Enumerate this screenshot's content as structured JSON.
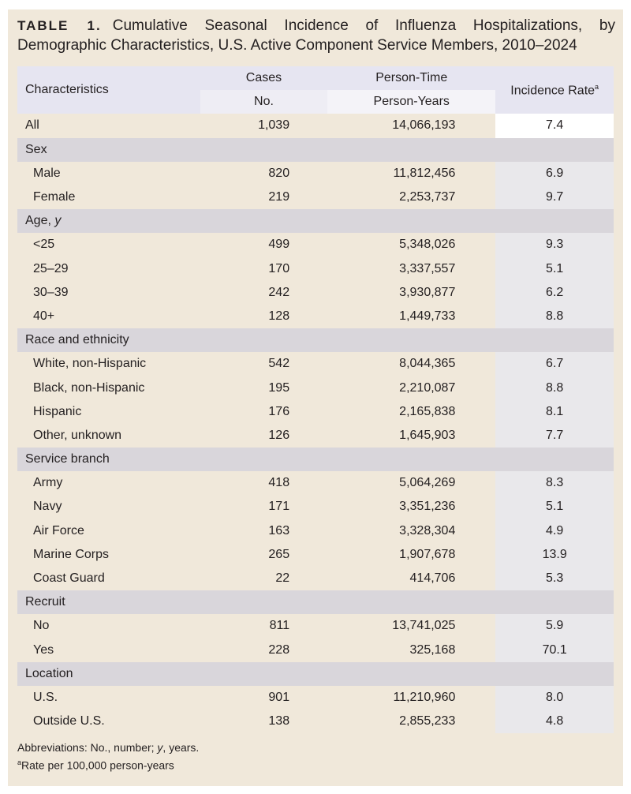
{
  "title": {
    "label": "TABLE 1.",
    "text": "Cumulative Seasonal Incidence of Influenza Hospitalizations, by Demographic Characteristics, U.S. Active Component Service Members, 2010–2024"
  },
  "header": {
    "characteristics": "Characteristics",
    "cases": "Cases",
    "cases_sub": "No.",
    "person_time": "Person-Time",
    "person_time_sub": "Person-Years",
    "rate": "Incidence Rate",
    "rate_sup": "a"
  },
  "rows": [
    {
      "type": "all",
      "label": "All",
      "cases": "1,039",
      "py": "14,066,193",
      "rate": "7.4"
    },
    {
      "type": "sec",
      "label": "Sex"
    },
    {
      "type": "item",
      "label": "Male",
      "cases": "820",
      "py": "11,812,456",
      "rate": "6.9"
    },
    {
      "type": "item",
      "label": "Female",
      "cases": "219",
      "py": "2,253,737",
      "rate": "9.7"
    },
    {
      "type": "sec",
      "label": "Age, ",
      "label_italic": "y"
    },
    {
      "type": "item",
      "label": "<25",
      "cases": "499",
      "py": "5,348,026",
      "rate": "9.3"
    },
    {
      "type": "item",
      "label": "25–29",
      "cases": "170",
      "py": "3,337,557",
      "rate": "5.1"
    },
    {
      "type": "item",
      "label": "30–39",
      "cases": "242",
      "py": "3,930,877",
      "rate": "6.2"
    },
    {
      "type": "item",
      "label": "40+",
      "cases": "128",
      "py": "1,449,733",
      "rate": "8.8"
    },
    {
      "type": "sec",
      "label": "Race and ethnicity"
    },
    {
      "type": "item",
      "label": "White, non-Hispanic",
      "cases": "542",
      "py": "8,044,365",
      "rate": "6.7"
    },
    {
      "type": "item",
      "label": "Black, non-Hispanic",
      "cases": "195",
      "py": "2,210,087",
      "rate": "8.8"
    },
    {
      "type": "item",
      "label": "Hispanic",
      "cases": "176",
      "py": "2,165,838",
      "rate": "8.1"
    },
    {
      "type": "item",
      "label": "Other, unknown",
      "cases": "126",
      "py": "1,645,903",
      "rate": "7.7"
    },
    {
      "type": "sec",
      "label": "Service branch"
    },
    {
      "type": "item",
      "label": "Army",
      "cases": "418",
      "py": "5,064,269",
      "rate": "8.3"
    },
    {
      "type": "item",
      "label": "Navy",
      "cases": "171",
      "py": "3,351,236",
      "rate": "5.1"
    },
    {
      "type": "item",
      "label": "Air Force",
      "cases": "163",
      "py": "3,328,304",
      "rate": "4.9"
    },
    {
      "type": "item",
      "label": "Marine Corps",
      "cases": "265",
      "py": "1,907,678",
      "rate": "13.9"
    },
    {
      "type": "item",
      "label": "Coast Guard",
      "cases": "22",
      "py": "414,706",
      "rate": "5.3"
    },
    {
      "type": "sec",
      "label": "Recruit"
    },
    {
      "type": "item",
      "label": "No",
      "cases": "811",
      "py": "13,741,025",
      "rate": "5.9"
    },
    {
      "type": "item",
      "label": "Yes",
      "cases": "228",
      "py": "325,168",
      "rate": "70.1"
    },
    {
      "type": "sec",
      "label": "Location"
    },
    {
      "type": "item",
      "label": "U.S.",
      "cases": "901",
      "py": "11,210,960",
      "rate": "8.0"
    },
    {
      "type": "item",
      "label": "Outside U.S.",
      "cases": "138",
      "py": "2,855,233",
      "rate": "4.8"
    }
  ],
  "notes": {
    "abbr_prefix": "Abbreviations: No., number; ",
    "abbr_italic": "y",
    "abbr_suffix": ", years.",
    "footnote_mark": "a",
    "footnote": "Rate per 100,000 person-years"
  },
  "colors": {
    "panel": "#f0e8da",
    "header": "#e6e5f1",
    "section": "#d9d6db",
    "rate_column": "#e9e8eb"
  }
}
